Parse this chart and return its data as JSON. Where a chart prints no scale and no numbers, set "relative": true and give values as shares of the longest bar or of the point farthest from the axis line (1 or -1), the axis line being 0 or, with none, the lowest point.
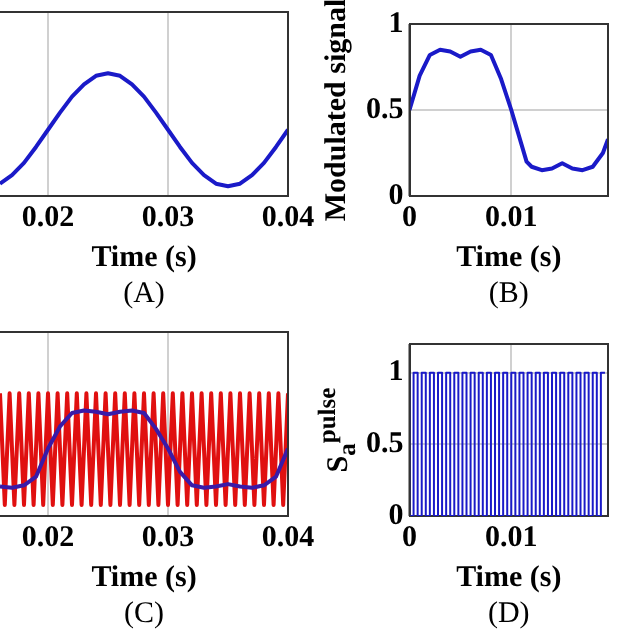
{
  "chart_data": [
    {
      "type": "line",
      "xlabel": "Time (s)",
      "annotations": [
        "(A)"
      ],
      "relative": true,
      "x": [
        0.016,
        0.017,
        0.018,
        0.019,
        0.02,
        0.021,
        0.022,
        0.023,
        0.024,
        0.025,
        0.026,
        0.027,
        0.028,
        0.029,
        0.03,
        0.031,
        0.032,
        0.033,
        0.034,
        0.035,
        0.036,
        0.037,
        0.038,
        0.039,
        0.04
      ],
      "values": [
        0.1,
        0.17,
        0.27,
        0.4,
        0.54,
        0.68,
        0.81,
        0.91,
        0.98,
        1,
        0.98,
        0.91,
        0.81,
        0.68,
        0.54,
        0.4,
        0.27,
        0.17,
        0.1,
        0.08,
        0.1,
        0.17,
        0.27,
        0.4,
        0.54
      ],
      "color": "#1a1ac8",
      "xlim": [
        0.016,
        0.04
      ],
      "xticks": [
        0.02,
        0.03,
        0.04
      ],
      "grid": "x"
    },
    {
      "type": "line",
      "xlabel": "Time (s)",
      "ylabel": "Modulated signal",
      "annotations": [
        "(B)"
      ],
      "x": [
        0,
        0.001,
        0.002,
        0.003,
        0.004,
        0.005,
        0.006,
        0.007,
        0.008,
        0.009,
        0.01,
        0.011,
        0.0115,
        0.012,
        0.013,
        0.014,
        0.015,
        0.016,
        0.017,
        0.018,
        0.019,
        0.0195
      ],
      "values": [
        0.5,
        0.7,
        0.82,
        0.85,
        0.84,
        0.81,
        0.84,
        0.85,
        0.82,
        0.68,
        0.5,
        0.3,
        0.2,
        0.17,
        0.15,
        0.16,
        0.19,
        0.16,
        0.15,
        0.17,
        0.25,
        0.33
      ],
      "color": "#1a1ac8",
      "xlim": [
        0,
        0.0195
      ],
      "xticks": [
        0,
        0.01
      ],
      "ylim": [
        0,
        1
      ],
      "yticks": [
        0,
        0.5,
        1
      ],
      "grid": true
    },
    {
      "type": "line",
      "xlabel": "Time (s)",
      "annotations": [
        "(C)"
      ],
      "relative": true,
      "xlim": [
        0.016,
        0.04
      ],
      "xticks": [
        0.02,
        0.03,
        0.04
      ],
      "grid": "x",
      "series": [
        {
          "color": "#e01010",
          "x": [
            0.016,
            0.0164,
            0.0168,
            0.0172,
            0.0176,
            0.018,
            0.0184,
            0.0188,
            0.0192,
            0.0196,
            0.02,
            0.0204,
            0.0208,
            0.0212,
            0.0216,
            0.022,
            0.0224,
            0.0228,
            0.0232,
            0.0236,
            0.024,
            0.0244,
            0.0248,
            0.0252,
            0.0256,
            0.026,
            0.0264,
            0.0268,
            0.0272,
            0.0276,
            0.028,
            0.0284,
            0.0288,
            0.0292,
            0.0296,
            0.03,
            0.0304,
            0.0308,
            0.0312,
            0.0316,
            0.032,
            0.0324,
            0.0328,
            0.0332,
            0.0336,
            0.034,
            0.0344,
            0.0348,
            0.0352,
            0.0356,
            0.036,
            0.0364,
            0.0368,
            0.0372,
            0.0376,
            0.038,
            0.0384,
            0.0388,
            0.0392,
            0.0396,
            0.04
          ],
          "values": [
            1,
            0.09,
            1,
            0.09,
            1,
            0.09,
            1,
            0.09,
            1,
            0.09,
            1,
            0.09,
            1,
            0.09,
            1,
            0.09,
            1,
            0.09,
            1,
            0.09,
            1,
            0.09,
            1,
            0.09,
            1,
            0.09,
            1,
            0.09,
            1,
            0.09,
            1,
            0.09,
            1,
            0.09,
            1,
            0.09,
            1,
            0.09,
            1,
            0.09,
            1,
            0.09,
            1,
            0.09,
            1,
            0.09,
            1,
            0.09,
            1,
            0.09,
            1,
            0.09,
            1,
            0.09,
            1,
            0.09,
            1,
            0.09,
            1,
            0.09,
            1
          ]
        },
        {
          "color": "#3a1aa8",
          "x": [
            0.016,
            0.017,
            0.018,
            0.019,
            0.02,
            0.021,
            0.022,
            0.023,
            0.024,
            0.025,
            0.026,
            0.027,
            0.028,
            0.029,
            0.03,
            0.031,
            0.032,
            0.033,
            0.034,
            0.035,
            0.036,
            0.037,
            0.038,
            0.039,
            0.04
          ],
          "values": [
            0.24,
            0.23,
            0.25,
            0.32,
            0.55,
            0.73,
            0.84,
            0.86,
            0.85,
            0.83,
            0.85,
            0.86,
            0.84,
            0.71,
            0.55,
            0.36,
            0.25,
            0.23,
            0.24,
            0.26,
            0.24,
            0.23,
            0.25,
            0.32,
            0.55
          ]
        }
      ]
    },
    {
      "type": "step",
      "xlabel": "Time (s)",
      "ylabel": "S$_{a}$$^{pulse}$",
      "annotations": [
        "(D)"
      ],
      "x": [
        0,
        0.0004,
        0.0008,
        0.0012,
        0.0016,
        0.002,
        0.0024,
        0.0028,
        0.0032,
        0.0036,
        0.004,
        0.0044,
        0.0048,
        0.0052,
        0.0056,
        0.006,
        0.0064,
        0.0068,
        0.0072,
        0.0076,
        0.008,
        0.0084,
        0.0088,
        0.0092,
        0.0096,
        0.01,
        0.0104,
        0.0108,
        0.0112,
        0.0116,
        0.012,
        0.0124,
        0.0128,
        0.0132,
        0.0136,
        0.014,
        0.0144,
        0.0148,
        0.0152,
        0.0156,
        0.016,
        0.0164,
        0.0168,
        0.0172,
        0.0176,
        0.018,
        0.0184,
        0.0188,
        0.0192
      ],
      "values": [
        1,
        0,
        1,
        0,
        1,
        0,
        1,
        0,
        1,
        0,
        1,
        0,
        1,
        0,
        1,
        0,
        1,
        0,
        1,
        0,
        1,
        0,
        1,
        0,
        1,
        0,
        1,
        0,
        1,
        0,
        1,
        0,
        1,
        0,
        1,
        0,
        1,
        0,
        1,
        0,
        1,
        0,
        1,
        0,
        1,
        0,
        1,
        0,
        1
      ],
      "color": "#1a1ac8",
      "xlim": [
        0,
        0.0195
      ],
      "xticks": [
        0,
        0.01
      ],
      "ylim": [
        0,
        1.2
      ],
      "yticks": [
        0,
        0.5,
        1
      ],
      "grid": true
    }
  ]
}
